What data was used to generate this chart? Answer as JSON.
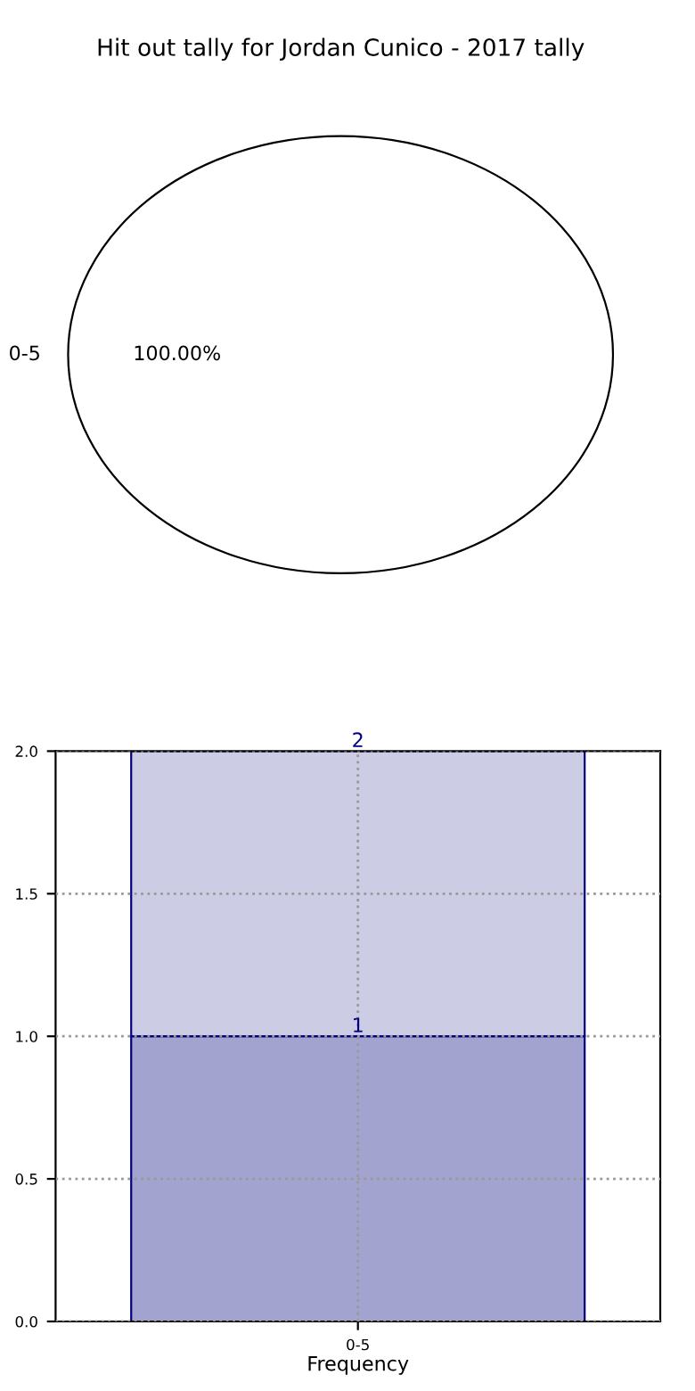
{
  "chart_data": [
    {
      "type": "pie",
      "title": "Hit out tally for Jordan Cunico - 2017 tally",
      "categories": [
        "0-5"
      ],
      "values": [
        100
      ],
      "colors": [
        "#ffffff"
      ],
      "value_labels": [
        "100.00%"
      ]
    },
    {
      "type": "bar",
      "categories": [
        "0-5"
      ],
      "xlabel": "Frequency",
      "ylim": [
        0,
        2
      ],
      "yticks": [
        {
          "value": 0,
          "label": "0.0"
        },
        {
          "value": 0.5,
          "label": "0.5"
        },
        {
          "value": 1,
          "label": "1.0"
        },
        {
          "value": 1.5,
          "label": "1.5"
        },
        {
          "value": 2,
          "label": "2.0"
        }
      ],
      "grid": true,
      "stacked": true,
      "totals": [
        "2"
      ],
      "series": [
        {
          "color": "#a3a3cf",
          "values": [
            1
          ],
          "value_labels": [
            "1"
          ]
        },
        {
          "color": "#cccce4",
          "values": [
            1
          ],
          "value_labels": [
            null
          ]
        }
      ]
    }
  ]
}
